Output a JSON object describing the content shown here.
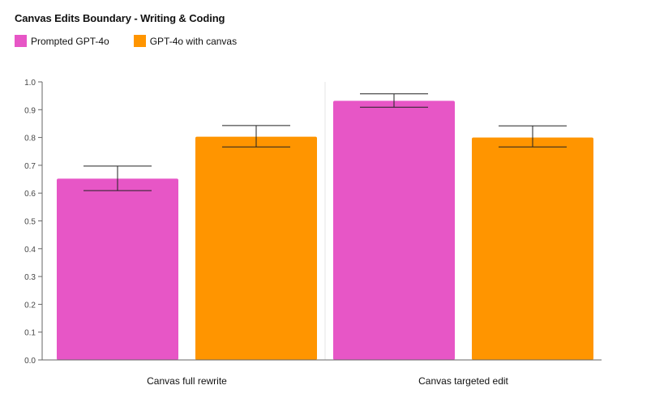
{
  "chart_data": {
    "type": "bar",
    "title": "Canvas Edits Boundary - Writing & Coding",
    "xlabel": "",
    "ylabel": "",
    "ylim": [
      0,
      1.0
    ],
    "yticks": [
      "0.0",
      "0.1",
      "0.2",
      "0.3",
      "0.4",
      "0.5",
      "0.6",
      "0.7",
      "0.8",
      "0.9",
      "1.0"
    ],
    "categories": [
      "Canvas full rewrite",
      "Canvas targeted edit"
    ],
    "series": [
      {
        "name": "Prompted GPT-4o",
        "color": "#e756c6",
        "values": [
          0.652,
          0.932
        ],
        "error_low": [
          0.609,
          0.909
        ],
        "error_high": [
          0.697,
          0.957
        ]
      },
      {
        "name": "GPT-4o with canvas",
        "color": "#ff9500",
        "values": [
          0.803,
          0.8
        ],
        "error_low": [
          0.766,
          0.766
        ],
        "error_high": [
          0.843,
          0.842
        ]
      }
    ],
    "grid": false,
    "legend_position": "top-left"
  }
}
